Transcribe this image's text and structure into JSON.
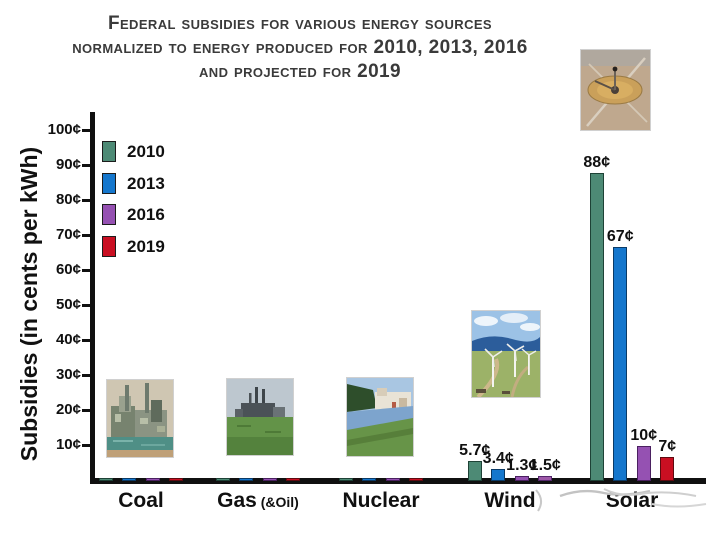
{
  "header": {
    "line1": "Federal subsidies for various energy sources",
    "line2": "normalized to energy produced for 2010, 2013, 2016",
    "line3": "and projected for 2019"
  },
  "chart_data": {
    "type": "bar",
    "title": "Federal subsidies for various energy sources normalized to energy produced for 2010, 2013, 2016 and projected for 2019",
    "ylabel": "Subsidies (in cents per kWh)",
    "ylim": [
      0,
      100
    ],
    "grid": false,
    "legend_position": "upper-left-inside",
    "yticks": [
      {
        "value": 10,
        "label": "10¢"
      },
      {
        "value": 20,
        "label": "20¢"
      },
      {
        "value": 30,
        "label": "30¢"
      },
      {
        "value": 40,
        "label": "40¢"
      },
      {
        "value": 50,
        "label": "50¢"
      },
      {
        "value": 60,
        "label": "60¢"
      },
      {
        "value": 70,
        "label": "70¢"
      },
      {
        "value": 80,
        "label": "80¢"
      },
      {
        "value": 90,
        "label": "90¢"
      },
      {
        "value": 100,
        "label": "100¢"
      }
    ],
    "categories": [
      {
        "name": "Coal"
      },
      {
        "name": "Gas",
        "suffix": "(&Oil)"
      },
      {
        "name": "Nuclear"
      },
      {
        "name": "Wind"
      },
      {
        "name": "Solar"
      }
    ],
    "series": [
      {
        "name": "2010",
        "color": "#4d8a75",
        "border": "#1e4236",
        "values": [
          0.5,
          0.5,
          0.5,
          5.7,
          88
        ],
        "labels": [
          "",
          "",
          "",
          "5.7¢",
          "88¢"
        ]
      },
      {
        "name": "2013",
        "color": "#1577cd",
        "border": "#0a3a66",
        "values": [
          0.5,
          0.5,
          0.5,
          3.4,
          67
        ],
        "labels": [
          "",
          "",
          "",
          "3.4¢",
          "67¢"
        ]
      },
      {
        "name": "2016",
        "color": "#9551b2",
        "border": "#4a2060",
        "values": [
          0.5,
          0.5,
          0.5,
          1.3,
          10
        ],
        "labels": [
          "",
          "",
          "",
          "1.3¢",
          "10¢"
        ]
      },
      {
        "name": "2019",
        "color": "#c90f22",
        "border": "#5e0a10",
        "values": [
          0.5,
          0.5,
          0.5,
          1.5,
          7
        ],
        "labels": [
          "",
          "",
          "",
          "1.5¢",
          "7¢"
        ],
        "bar_overrides": {
          "3": {
            "color": "#9e58a8",
            "border": "#53276b"
          }
        }
      }
    ]
  },
  "images": {
    "coal": "photo of a coal power plant over water",
    "gas": "photo of a gas power plant with smokestacks behind a lawn",
    "nuclear": "photo of a nuclear plant beside a river",
    "wind": "photo of wind turbines on coastal grassland",
    "solar": "aerial photo of a concentrated solar power plant in the desert"
  }
}
